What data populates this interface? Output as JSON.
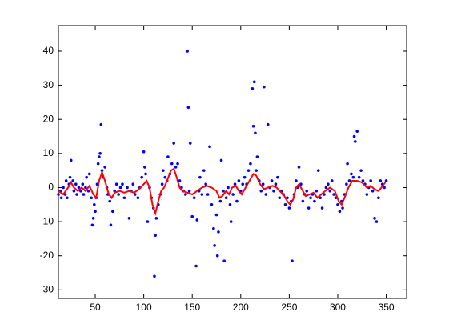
{
  "chart_data": {
    "type": "scatter",
    "xlim": [
      12,
      371
    ],
    "ylim": [
      -32.5,
      47.5
    ],
    "xticks": [
      50,
      100,
      150,
      200,
      250,
      300,
      350
    ],
    "yticks": [
      -30,
      -20,
      -10,
      0,
      10,
      20,
      30,
      40
    ],
    "series": [
      {
        "type": "scatter",
        "color": "#0000ff",
        "x": [
          12,
          14,
          15,
          17,
          19,
          20,
          21,
          23,
          24,
          25,
          27,
          28,
          30,
          31,
          33,
          35,
          37,
          38,
          40,
          41,
          43,
          44,
          46,
          47,
          48,
          49,
          50,
          51,
          52,
          53,
          54,
          55,
          56,
          57,
          58,
          60,
          62,
          63,
          65,
          66,
          68,
          70,
          72,
          74,
          76,
          78,
          80,
          83,
          85,
          87,
          89,
          91,
          94,
          96,
          98,
          100,
          101,
          102,
          104,
          106,
          108,
          110,
          111,
          112,
          113,
          115,
          117,
          119,
          120,
          122,
          124,
          125,
          127,
          129,
          131,
          133,
          135,
          137,
          139,
          141,
          143,
          145,
          146,
          147,
          148,
          150,
          152,
          154,
          155,
          157,
          158,
          160,
          162,
          164,
          166,
          168,
          170,
          172,
          173,
          175,
          176,
          177,
          179,
          180,
          182,
          183,
          185,
          187,
          189,
          190,
          192,
          194,
          196,
          198,
          200,
          202,
          204,
          206,
          208,
          210,
          212,
          213,
          214,
          215,
          216,
          217,
          219,
          221,
          223,
          224,
          226,
          228,
          230,
          232,
          234,
          236,
          238,
          240,
          242,
          244,
          246,
          248,
          250,
          252,
          253,
          255,
          257,
          259,
          260,
          262,
          264,
          266,
          268,
          270,
          272,
          274,
          276,
          278,
          280,
          282,
          284,
          286,
          288,
          290,
          292,
          294,
          296,
          298,
          300,
          302,
          304,
          305,
          307,
          309,
          310,
          312,
          314,
          316,
          317,
          318,
          320,
          322,
          324,
          326,
          328,
          330,
          332,
          334,
          336,
          338,
          340,
          342,
          344,
          346,
          348,
          350
        ],
        "values": [
          -2,
          -1,
          -3,
          0,
          -2,
          2,
          -3,
          1,
          3,
          8,
          2,
          -1,
          1,
          -2,
          0,
          -1,
          1,
          -2,
          0,
          3,
          -1,
          4,
          -3,
          -11,
          -9,
          -5,
          -7,
          -3,
          1,
          7,
          9,
          10,
          18.5,
          5,
          3,
          6,
          0,
          -2,
          -4,
          -11,
          -7,
          -1,
          1,
          -2,
          0,
          1,
          -3,
          0,
          -9,
          -1,
          1,
          -2,
          -3,
          0,
          3,
          10.5,
          6,
          4,
          -10,
          0,
          -3,
          -6,
          -26,
          -14,
          -9,
          -5,
          -2,
          1,
          5,
          3,
          2,
          9,
          4,
          7,
          13,
          6,
          7,
          2,
          0,
          -1,
          -2,
          40,
          23.5,
          -1,
          13,
          -8.5,
          -3,
          -23,
          -9.5,
          -1,
          3,
          -2,
          5,
          1,
          -2,
          12,
          -5,
          -12,
          -17,
          -8,
          -20,
          -13,
          -4,
          8,
          -1,
          -21.5,
          -3,
          0,
          -5,
          -10,
          -2,
          1,
          -4,
          2,
          -1,
          1,
          3,
          1,
          5,
          7,
          29,
          18,
          31,
          16,
          5,
          9,
          2,
          -1,
          1,
          29.5,
          -2,
          18.5,
          0,
          2,
          -1,
          1,
          3,
          -3,
          -1,
          -2,
          -5,
          -3,
          -6,
          -4,
          -21.5,
          -2,
          2,
          0,
          6,
          1,
          -4,
          -2,
          -1,
          -6,
          -3,
          -2,
          -4,
          -1,
          5,
          -3,
          -6,
          -2,
          0,
          1,
          -1,
          2,
          -2,
          -3,
          -5,
          -7,
          -4,
          -6,
          -2,
          1,
          7,
          2,
          4,
          3,
          15,
          13.5,
          16.5,
          3,
          5,
          2,
          1,
          -2,
          0,
          2,
          -1,
          -9,
          -10,
          -3,
          2,
          1,
          0,
          2
        ]
      },
      {
        "type": "line",
        "color": "#ff0000",
        "x": [
          12,
          17,
          22,
          25,
          28,
          32,
          36,
          40,
          44,
          48,
          51,
          54,
          57,
          60,
          64,
          67,
          70,
          75,
          80,
          85,
          90,
          95,
          100,
          103,
          106,
          109,
          112,
          115,
          118,
          121,
          124,
          128,
          131,
          134,
          137,
          140,
          145,
          150,
          155,
          160,
          165,
          170,
          175,
          178,
          181,
          185,
          188,
          191,
          195,
          198,
          201,
          205,
          209,
          213,
          216,
          220,
          224,
          228,
          233,
          237,
          240,
          244,
          248,
          251,
          254,
          257,
          260,
          263,
          267,
          271,
          275,
          279,
          283,
          287,
          292,
          297,
          301,
          304,
          307,
          311,
          315,
          320,
          325,
          330,
          334,
          338,
          342,
          345,
          349
        ],
        "values": [
          -1,
          -2,
          0,
          1.5,
          0,
          -1,
          0,
          -1,
          0.5,
          -2,
          -3,
          2,
          4.5,
          2,
          -2,
          -3,
          -1.5,
          -1,
          -1.5,
          -1,
          -1.5,
          -0.5,
          1,
          2,
          0,
          -5,
          -7.5,
          -4,
          -1,
          0,
          2,
          5,
          5.5,
          3,
          0,
          -1,
          -1.5,
          -2,
          -1,
          0,
          0.5,
          0,
          -1,
          -3,
          -2.5,
          -1,
          -2,
          0,
          0.5,
          -1,
          -2,
          0,
          2,
          4,
          3.5,
          1,
          -0.5,
          0,
          0.5,
          0,
          -1,
          -2,
          -4,
          -5,
          -3.5,
          0,
          1,
          -0.5,
          -2.5,
          -2,
          -1.5,
          -3,
          -2,
          -1,
          0,
          -1,
          -4,
          -5,
          -3,
          0,
          2,
          2,
          1.5,
          0,
          0.5,
          -0.5,
          -1,
          0,
          1.5
        ]
      }
    ]
  }
}
